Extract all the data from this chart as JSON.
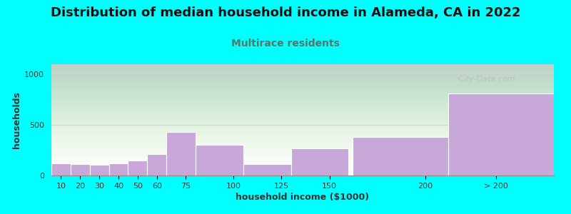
{
  "title": "Distribution of median household income in Alameda, CA in 2022",
  "subtitle": "Multirace residents",
  "xlabel": "household income ($1000)",
  "ylabel": "households",
  "background_color": "#00FFFF",
  "bar_color": "#C8A8D8",
  "categories": [
    "10",
    "20",
    "30",
    "40",
    "50",
    "60",
    "75",
    "100",
    "125",
    "150",
    "200",
    "> 200"
  ],
  "values": [
    120,
    110,
    105,
    120,
    150,
    215,
    430,
    305,
    115,
    265,
    380,
    810
  ],
  "bar_lefts": [
    5,
    15,
    25,
    35,
    45,
    55,
    65,
    80,
    105,
    130,
    162,
    212
  ],
  "bar_widths": [
    10,
    10,
    10,
    10,
    10,
    10,
    15,
    25,
    25,
    30,
    50,
    55
  ],
  "tick_positions": [
    10,
    20,
    30,
    40,
    50,
    60,
    75,
    100,
    125,
    150,
    200,
    237
  ],
  "tick_labels": [
    "10",
    "20",
    "30",
    "40",
    "50",
    "60",
    "75",
    "100",
    "125",
    "150",
    "200",
    "> 200"
  ],
  "xlim": [
    5,
    267
  ],
  "ylim": [
    0,
    1100
  ],
  "yticks": [
    0,
    500,
    1000
  ],
  "title_fontsize": 13,
  "subtitle_fontsize": 10,
  "axis_label_fontsize": 9,
  "tick_fontsize": 8,
  "watermark": "  City-Data.com"
}
